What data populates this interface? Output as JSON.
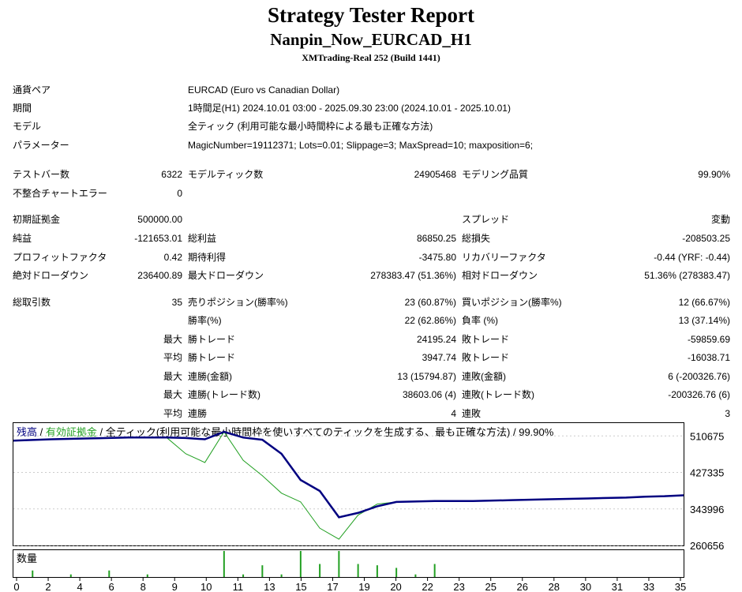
{
  "header": {
    "title": "Strategy Tester Report",
    "subtitle": "Nanpin_Now_EURCAD_H1",
    "server": "XMTrading-Real 252 (Build 1441)"
  },
  "info": {
    "pair_label": "通貨ペア",
    "pair_value": "EURCAD (Euro vs Canadian Dollar)",
    "period_label": "期間",
    "period_value": "1時間足(H1) 2024.10.01 03:00 - 2025.09.30 23:00 (2024.10.01 - 2025.10.01)",
    "model_label": "モデル",
    "model_value": "全ティック (利用可能な最小時間枠による最も正確な方法)",
    "params_label": "パラメーター",
    "params_value": "MagicNumber=19112371; Lots=0.01; Slippage=3; MaxSpread=10; maxposition=6;"
  },
  "stats": {
    "bars_label": "テストバー数",
    "bars_value": "6322",
    "ticks_label": "モデルティック数",
    "ticks_value": "24905468",
    "quality_label": "モデリング品質",
    "quality_value": "99.90%",
    "mismatch_label": "不整合チャートエラー",
    "mismatch_value": "0",
    "deposit_label": "初期証拠金",
    "deposit_value": "500000.00",
    "spread_label": "スプレッド",
    "spread_value": "変動",
    "net_label": "純益",
    "net_value": "-121653.01",
    "gross_profit_label": "総利益",
    "gross_profit_value": "86850.25",
    "gross_loss_label": "総損失",
    "gross_loss_value": "-208503.25",
    "pf_label": "プロフィットファクタ",
    "pf_value": "0.42",
    "expected_label": "期待利得",
    "expected_value": "-3475.80",
    "recovery_label": "リカバリーファクタ",
    "recovery_value": "-0.44 (YRF: -0.44)",
    "abs_dd_label": "絶対ドローダウン",
    "abs_dd_value": "236400.89",
    "max_dd_label": "最大ドローダウン",
    "max_dd_value": "278383.47 (51.36%)",
    "rel_dd_label": "相対ドローダウン",
    "rel_dd_value": "51.36% (278383.47)",
    "total_trades_label": "総取引数",
    "total_trades_value": "35",
    "short_label": "売りポジション(勝率%)",
    "short_value": "23 (60.87%)",
    "long_label": "買いポジション(勝率%)",
    "long_value": "12 (66.67%)",
    "win_rate_label": "勝率(%)",
    "win_rate_value": "22 (62.86%)",
    "loss_rate_label": "負率 (%)",
    "loss_rate_value": "13 (37.14%)",
    "max_prefix": "最大",
    "avg_prefix": "平均",
    "max_win_label": "勝トレード",
    "max_win_value": "24195.24",
    "max_loss_label": "敗トレード",
    "max_loss_value": "-59859.69",
    "avg_win_label": "勝トレード",
    "avg_win_value": "3947.74",
    "avg_loss_label": "敗トレード",
    "avg_loss_value": "-16038.71",
    "max_cons_win_amt_label": "連勝(金額)",
    "max_cons_win_amt_value": "13 (15794.87)",
    "max_cons_loss_amt_label": "連敗(金額)",
    "max_cons_loss_amt_value": "6 (-200326.76)",
    "max_cons_win_cnt_label": "連勝(トレード数)",
    "max_cons_win_cnt_value": "38603.06 (4)",
    "max_cons_loss_cnt_label": "連敗(トレード数)",
    "max_cons_loss_cnt_value": "-200326.76 (6)",
    "avg_cons_win_label": "連勝",
    "avg_cons_win_value": "4",
    "avg_cons_loss_label": "連敗",
    "avg_cons_loss_value": "3"
  },
  "chart_legend": {
    "balance": "残高",
    "sep1": " / ",
    "equity": "有効証拠金",
    "rest": " / 全ティック(利用可能な最小時間枠を使いすべてのティックを生成する、最も正確な方法) / 99.90%"
  },
  "volume_label": "数量",
  "colors": {
    "balance": "#000080",
    "equity": "#22a022",
    "volume": "#22a022"
  },
  "chart_data": {
    "type": "line",
    "ylim": [
      260656,
      540000
    ],
    "yticks": [
      510675,
      427335,
      343996,
      260656
    ],
    "xticks": [
      "0",
      "2",
      "4",
      "6",
      "8",
      "9",
      "10",
      "11",
      "13",
      "15",
      "17",
      "19",
      "20",
      "22",
      "23",
      "25",
      "26",
      "28",
      "30",
      "31",
      "33",
      "35"
    ],
    "series": [
      {
        "name": "残高",
        "x": [
          0,
          2,
          4,
          6,
          8,
          9,
          10,
          11,
          12,
          13,
          14,
          15,
          16,
          17,
          18,
          19,
          20,
          22,
          24,
          26,
          28,
          30,
          32,
          33,
          34,
          35
        ],
        "y": [
          500000,
          503000,
          505000,
          507000,
          507000,
          506000,
          503000,
          520000,
          507000,
          502000,
          470000,
          410000,
          385000,
          325000,
          335000,
          350000,
          360000,
          362000,
          362000,
          364000,
          366000,
          368000,
          370000,
          372000,
          373000,
          375000
        ]
      },
      {
        "name": "有効証拠金",
        "x": [
          0,
          2,
          4,
          6,
          8,
          9,
          10,
          11,
          12,
          13,
          14,
          15,
          16,
          17,
          18,
          19,
          20
        ],
        "y": [
          500000,
          503000,
          505000,
          507000,
          507000,
          470000,
          450000,
          520000,
          455000,
          420000,
          380000,
          360000,
          300000,
          275000,
          330000,
          355000,
          360000
        ]
      }
    ],
    "volume": {
      "x": [
        1,
        3,
        5,
        7,
        11,
        12,
        13,
        14,
        15,
        16,
        17,
        18,
        19,
        20,
        21,
        22
      ],
      "values": [
        0.25,
        0.1,
        0.25,
        0.1,
        1,
        0.1,
        0.45,
        0.1,
        1,
        0.5,
        1,
        0.5,
        0.45,
        0.35,
        0.1,
        0.5
      ]
    }
  }
}
